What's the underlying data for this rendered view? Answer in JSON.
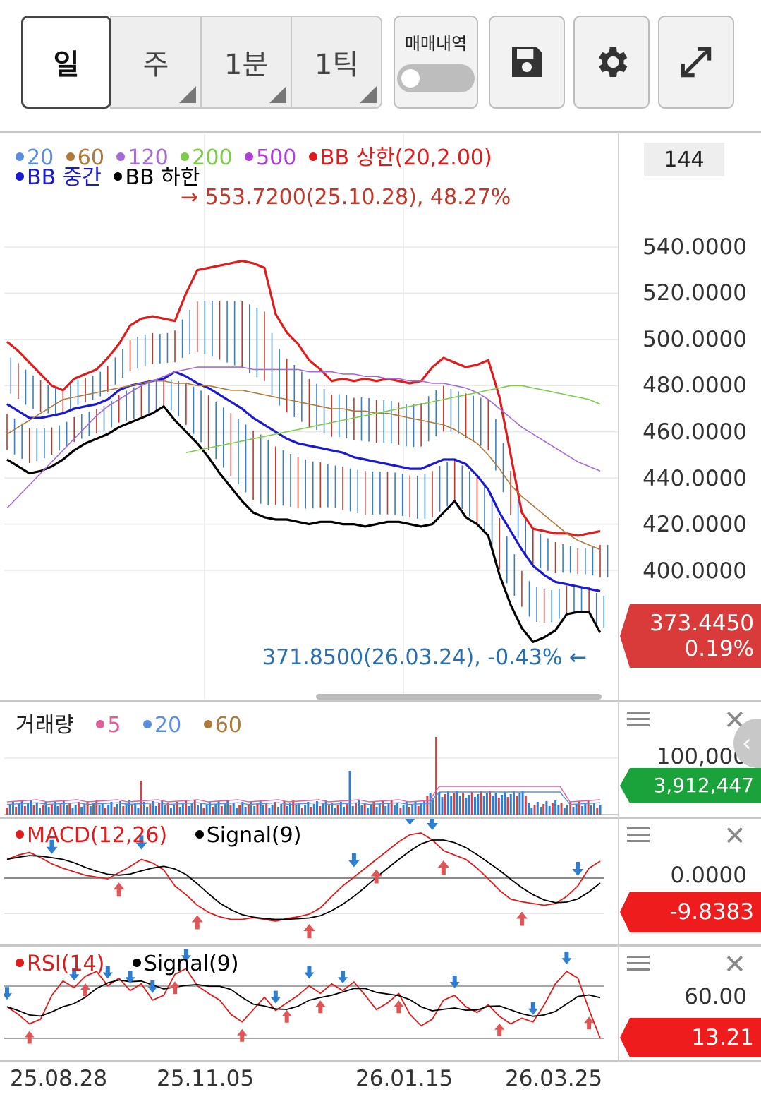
{
  "toolbar": {
    "period_tabs": [
      {
        "label": "일",
        "active": true
      },
      {
        "label": "주",
        "active": false
      },
      {
        "label": "1분",
        "active": false
      },
      {
        "label": "1틱",
        "active": false
      }
    ],
    "trade_history_label": "매매내역",
    "trade_history_on": false,
    "save_icon": "floppy-disk-icon",
    "settings_icon": "gear-icon",
    "expand_icon": "expand-arrows-icon"
  },
  "price_panel": {
    "count_badge": "144",
    "legend": [
      {
        "label": "20",
        "color": "#5b8ee0"
      },
      {
        "label": "60",
        "color": "#b07a3a"
      },
      {
        "label": "120",
        "color": "#a66ad8"
      },
      {
        "label": "200",
        "color": "#7ccc4a"
      },
      {
        "label": "500",
        "color": "#b040d8"
      },
      {
        "label": "BB 상한(20,2.00)",
        "color": "#e01b1b"
      },
      {
        "label": "BB 중간",
        "color": "#1a1ad0"
      },
      {
        "label": "BB 하한",
        "color": "#000000"
      }
    ],
    "high_annotation": "553.7200(25.10.28), 48.27%",
    "low_annotation": "371.8500(26.03.24), -0.43%",
    "y_ticks": [
      "540.0000",
      "520.0000",
      "500.0000",
      "480.0000",
      "460.0000",
      "440.0000",
      "420.0000",
      "400.0000"
    ],
    "current_price": "373.4450",
    "current_change": "0.19%",
    "current_color": "#d93b3b"
  },
  "volume_panel": {
    "title": "거래량",
    "legend": [
      {
        "label": "5",
        "color": "#e0609a"
      },
      {
        "label": "20",
        "color": "#5b8ee0"
      },
      {
        "label": "60",
        "color": "#b07a3a"
      }
    ],
    "y_tick": "100,000",
    "current_value": "3,912,447",
    "current_color": "#1aa33a"
  },
  "macd_panel": {
    "legend": [
      {
        "label": "MACD(12,26)",
        "color": "#e01b1b"
      },
      {
        "label": "Signal(9)",
        "color": "#000000"
      }
    ],
    "y_tick": "0.0000",
    "current_value": "-9.8383",
    "current_color": "#ee1c1c"
  },
  "rsi_panel": {
    "legend": [
      {
        "label": "RSI(14)",
        "color": "#e01b1b"
      },
      {
        "label": "Signal(9)",
        "color": "#000000"
      }
    ],
    "y_tick": "60.00",
    "current_value": "13.21",
    "current_color": "#ee1c1c"
  },
  "x_axis": {
    "dates": [
      "25.08.28",
      "25.11.05",
      "26.01.15",
      "26.03.25"
    ]
  },
  "chart_data": {
    "type": "line",
    "ylim": [
      360,
      560
    ],
    "y_ticks": [
      400,
      420,
      440,
      460,
      480,
      500,
      520,
      540
    ],
    "x_labels": [
      "25.08.28",
      "25.11.05",
      "26.01.15",
      "26.03.25"
    ],
    "high": {
      "value": 553.72,
      "date": "25.10.28"
    },
    "low": {
      "value": 371.85,
      "date": "26.03.24"
    },
    "last": 373.445,
    "series": [
      {
        "name": "BB 상한(20,2.00)",
        "color": "#e01b1b",
        "values": [
          499,
          495,
          490,
          485,
          480,
          478,
          483,
          485,
          487,
          492,
          498,
          506,
          509,
          510,
          509,
          508,
          520,
          530,
          531,
          532,
          533,
          534,
          533,
          531,
          511,
          503,
          498,
          491,
          487,
          482,
          483,
          482,
          483,
          482,
          483,
          482,
          481,
          482,
          488,
          492,
          490,
          488,
          489,
          491,
          475,
          450,
          425,
          418,
          417,
          416,
          416,
          415,
          416,
          417
        ]
      },
      {
        "name": "BB 중간",
        "color": "#1a1ad0",
        "values": [
          472,
          469,
          466,
          466,
          467,
          468,
          470,
          471,
          472,
          474,
          478,
          480,
          481,
          482,
          483,
          486,
          484,
          481,
          479,
          476,
          473,
          470,
          466,
          463,
          460,
          457,
          455,
          454,
          453,
          452,
          451,
          449,
          448,
          447,
          446,
          445,
          444,
          444,
          446,
          448,
          448,
          446,
          441,
          435,
          425,
          417,
          409,
          402,
          398,
          395,
          394,
          393,
          392,
          391
        ]
      },
      {
        "name": "BB 하한",
        "color": "#000000",
        "values": [
          448,
          445,
          442,
          443,
          445,
          448,
          452,
          455,
          457,
          459,
          462,
          464,
          466,
          468,
          471,
          465,
          460,
          455,
          449,
          442,
          436,
          430,
          425,
          423,
          422,
          422,
          421,
          420,
          421,
          421,
          420,
          420,
          419,
          420,
          421,
          421,
          420,
          419,
          420,
          425,
          430,
          423,
          420,
          415,
          398,
          385,
          375,
          369,
          371,
          374,
          381,
          382,
          382,
          373
        ]
      },
      {
        "name": "20",
        "color": "#5b8ee0",
        "values": []
      },
      {
        "name": "60",
        "color": "#b07a3a",
        "values": [
          459,
          462,
          465,
          468,
          471,
          474,
          475,
          476,
          477,
          478,
          479,
          480,
          481,
          482,
          482,
          481,
          481,
          480,
          480,
          479,
          478,
          478,
          477,
          476,
          475,
          474,
          473,
          472,
          471,
          470,
          470,
          469,
          469,
          468,
          468,
          467,
          466,
          465,
          464,
          463,
          461,
          458,
          455,
          450,
          444,
          437,
          432,
          428,
          424,
          420,
          416,
          413,
          411,
          409
        ]
      },
      {
        "name": "120",
        "color": "#a66ad8",
        "values": [
          427,
          432,
          437,
          442,
          447,
          452,
          457,
          462,
          467,
          471,
          474,
          477,
          480,
          482,
          484,
          486,
          487,
          488,
          488,
          488,
          488,
          488,
          487,
          487,
          487,
          487,
          487,
          486,
          486,
          486,
          485,
          485,
          484,
          484,
          483,
          483,
          482,
          482,
          481,
          481,
          480,
          479,
          477,
          474,
          470,
          466,
          462,
          459,
          456,
          453,
          450,
          447,
          445,
          443
        ]
      },
      {
        "name": "200",
        "color": "#7ccc4a",
        "values": [
          null,
          null,
          null,
          null,
          null,
          null,
          null,
          null,
          null,
          null,
          null,
          null,
          null,
          null,
          null,
          null,
          451,
          452,
          453,
          454,
          455,
          456,
          457,
          458,
          459,
          460,
          461,
          462,
          463,
          464,
          465,
          466,
          467,
          468,
          469,
          470,
          471,
          472,
          473,
          474,
          475,
          476,
          477,
          478,
          479,
          480,
          480,
          479,
          478,
          477,
          476,
          475,
          474,
          472
        ]
      }
    ]
  }
}
